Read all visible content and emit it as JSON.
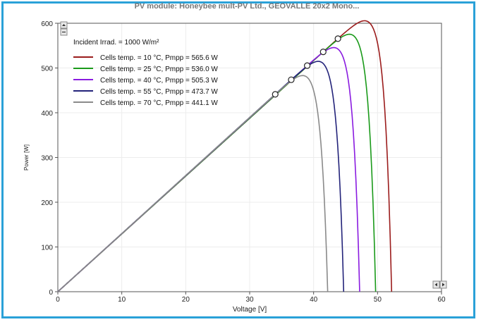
{
  "chart_data": {
    "type": "line",
    "title": "PV module: Honeybee mult-PV Ltd., GEOVALLE 20x2 Mono...",
    "xlabel": "Voltage [V]",
    "ylabel": "Power [W]",
    "xlim": [
      0,
      60
    ],
    "ylim": [
      0,
      600
    ],
    "xticks": [
      0,
      10,
      20,
      30,
      40,
      50,
      60
    ],
    "yticks": [
      0,
      100,
      200,
      300,
      400,
      500,
      600
    ],
    "annotation": "Incident Irrad. = 1000 W/m²",
    "legend_position": "top-left",
    "grid": true,
    "series": [
      {
        "name": "Cells temp. = 10 °C,  Pmpp = 565.6 W",
        "color": "#9b1c1c",
        "vmp": 43.8,
        "pmp": 565.6,
        "voc": 52.2
      },
      {
        "name": "Cells temp. = 25 °C,  Pmpp = 536.0 W",
        "color": "#1a9a1a",
        "vmp": 41.5,
        "pmp": 536.0,
        "voc": 49.7
      },
      {
        "name": "Cells temp. = 40 °C,  Pmpp = 505.3 W",
        "color": "#8a1be0",
        "vmp": 39.0,
        "pmp": 505.3,
        "voc": 47.2
      },
      {
        "name": "Cells temp. = 55 °C,  Pmpp = 473.7 W",
        "color": "#23237a",
        "vmp": 36.5,
        "pmp": 473.7,
        "voc": 44.7
      },
      {
        "name": "Cells temp. = 70 °C,  Pmpp = 441.1 W",
        "color": "#8a8a8a",
        "vmp": 34.0,
        "pmp": 441.1,
        "voc": 42.2
      }
    ]
  }
}
